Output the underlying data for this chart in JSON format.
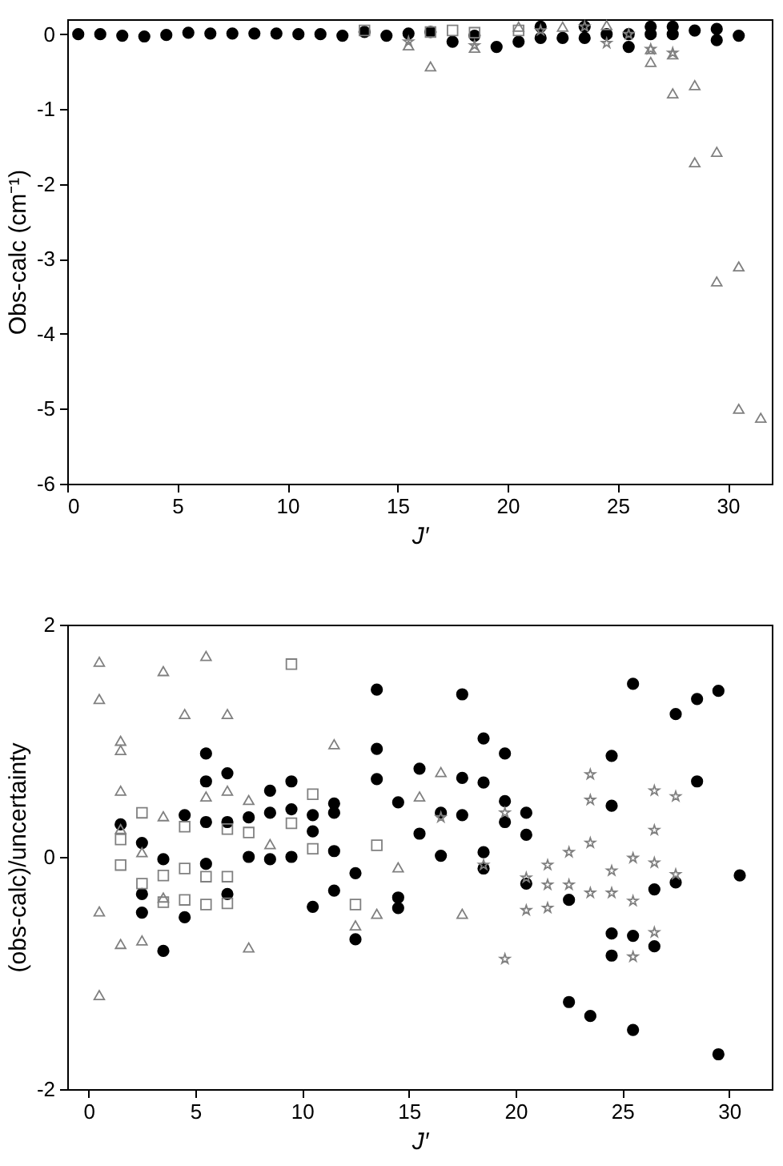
{
  "chart_data": [
    {
      "type": "scatter",
      "xlabel": "J′",
      "ylabel": "Obs-calc (cm⁻¹)",
      "xlim": [
        0,
        32
      ],
      "ylim": [
        -6,
        0.2
      ],
      "xticks": [
        0,
        5,
        10,
        15,
        20,
        25,
        30
      ],
      "yticks": [
        -6,
        -5,
        -4,
        -3,
        -2,
        -1,
        0
      ],
      "series": [
        {
          "type": "scatter",
          "marker": "circle",
          "color": "#000000",
          "x": [
            0.5,
            1.5,
            2.5,
            3.5,
            4.5,
            5.5,
            6.5,
            7.5,
            8.5,
            9.5,
            10.5,
            11.5,
            12.5,
            13.5,
            14.5,
            15.5,
            16.5,
            17.5,
            18.5,
            19.5,
            20.5,
            21.5,
            22.5,
            23.5,
            24.5,
            25.5,
            26.5,
            27.5,
            28.5,
            29.5,
            30.5,
            21.5,
            23.5,
            25.5,
            26.5,
            27.5,
            29.5
          ],
          "values": [
            0,
            0,
            -0.02,
            -0.03,
            -0.01,
            0.02,
            0.01,
            0.01,
            0.01,
            0.01,
            0,
            0,
            -0.02,
            0.03,
            -0.02,
            0.01,
            0.03,
            -0.1,
            -0.02,
            -0.17,
            -0.1,
            0.1,
            -0.05,
            0.1,
            0,
            -0.17,
            0.1,
            0.1,
            0.05,
            0.07,
            -0.02,
            -0.05,
            -0.05,
            0,
            0,
            0,
            -0.08
          ]
        },
        {
          "type": "scatter",
          "marker": "triangle",
          "color": "#808080",
          "x": [
            15.5,
            16.5,
            18.5,
            20.5,
            22.5,
            24.5,
            26.5,
            26.5,
            27.5,
            27.5,
            28.5,
            28.5,
            29.5,
            29.5,
            30.5,
            30.5,
            31.5
          ],
          "values": [
            -0.15,
            -0.43,
            -0.18,
            0.1,
            0.1,
            0.12,
            -0.37,
            -0.2,
            -0.79,
            -0.27,
            -0.68,
            -1.71,
            -1.57,
            -3.3,
            -3.1,
            -5.0,
            -5.12
          ]
        },
        {
          "type": "scatter",
          "marker": "square",
          "color": "#808080",
          "x": [
            13.5,
            16.5,
            17.5,
            18.5,
            20.5
          ],
          "values": [
            0.05,
            0.03,
            0.05,
            0.02,
            0.05
          ]
        },
        {
          "type": "scatter",
          "marker": "star",
          "color": "#808080",
          "x": [
            15.5,
            18.5,
            21.5,
            23.5,
            24.5,
            25.5,
            26.5,
            27.5
          ],
          "values": [
            -0.1,
            -0.15,
            0.05,
            0.1,
            -0.12,
            0,
            -0.2,
            -0.25
          ]
        }
      ]
    },
    {
      "type": "scatter",
      "xlabel": "J′",
      "ylabel": "(obs-calc)/uncertainty",
      "xlim": [
        -1,
        32
      ],
      "ylim": [
        -2,
        2
      ],
      "xticks": [
        0,
        5,
        10,
        15,
        20,
        25,
        30
      ],
      "yticks": [
        -2,
        0,
        2
      ],
      "series": [
        {
          "type": "scatter",
          "marker": "circle",
          "color": "#000000",
          "x": [
            1.5,
            2.5,
            2.5,
            2.5,
            3.5,
            3.5,
            4.5,
            4.5,
            5.5,
            5.5,
            5.5,
            5.5,
            6.5,
            6.5,
            6.5,
            7.5,
            7.5,
            8.5,
            8.5,
            8.5,
            9.5,
            9.5,
            9.5,
            10.5,
            10.5,
            10.5,
            11.5,
            11.5,
            11.5,
            11.5,
            12.5,
            12.5,
            13.5,
            13.5,
            13.5,
            14.5,
            14.5,
            14.5,
            15.5,
            15.5,
            16.5,
            16.5,
            17.5,
            17.5,
            17.5,
            18.5,
            18.5,
            18.5,
            18.5,
            19.5,
            19.5,
            19.5,
            20.5,
            20.5,
            20.5,
            22.5,
            22.5,
            23.5,
            24.5,
            24.5,
            24.5,
            24.5,
            25.5,
            25.5,
            25.5,
            26.5,
            26.5,
            27.5,
            27.5,
            28.5,
            28.5,
            29.5,
            29.5,
            30.5
          ],
          "values": [
            0.28,
            0.12,
            -0.32,
            -0.48,
            -0.02,
            -0.81,
            0.36,
            -0.52,
            0.89,
            0.65,
            0.3,
            -0.06,
            0.72,
            0.3,
            -0.32,
            0.34,
            0,
            0.57,
            0.38,
            -0.02,
            0.65,
            0.41,
            0,
            0.36,
            0.22,
            -0.43,
            0.46,
            0.38,
            0.05,
            -0.29,
            -0.14,
            -0.71,
            1.44,
            0.93,
            0.67,
            0.47,
            -0.35,
            -0.44,
            0.76,
            0.2,
            0.38,
            0.01,
            1.4,
            0.68,
            0.36,
            1.02,
            0.64,
            0.04,
            -0.1,
            0.89,
            0.48,
            0.3,
            0.38,
            0.19,
            -0.23,
            -0.37,
            -1.25,
            -1.37,
            0.87,
            0.44,
            -0.66,
            -0.85,
            1.49,
            -0.68,
            -1.49,
            -0.28,
            -0.77,
            1.23,
            -0.22,
            1.36,
            0.65,
            1.43,
            -1.7,
            -0.16
          ]
        },
        {
          "type": "scatter",
          "marker": "triangle",
          "color": "#808080",
          "x": [
            0.5,
            0.5,
            0.5,
            0.5,
            1.5,
            1.5,
            1.5,
            1.5,
            1.5,
            2.5,
            2.5,
            3.5,
            3.5,
            3.5,
            4.5,
            5.5,
            5.5,
            6.5,
            6.5,
            7.5,
            7.5,
            8.5,
            11.5,
            12.5,
            13.5,
            14.5,
            15.5,
            16.5,
            17.5
          ],
          "values": [
            1.68,
            1.36,
            -0.47,
            -1.19,
            1.0,
            0.92,
            0.57,
            0.24,
            -0.75,
            0.04,
            -0.72,
            1.6,
            0.35,
            -0.35,
            1.23,
            1.73,
            0.52,
            1.23,
            0.57,
            0.49,
            -0.78,
            0.11,
            0.97,
            -0.59,
            -0.49,
            -0.09,
            0.52,
            0.73,
            -0.49
          ]
        },
        {
          "type": "scatter",
          "marker": "square",
          "color": "#808080",
          "x": [
            1.5,
            1.5,
            2.5,
            2.5,
            3.5,
            3.5,
            4.5,
            4.5,
            4.5,
            5.5,
            5.5,
            6.5,
            6.5,
            6.5,
            7.5,
            9.5,
            9.5,
            10.5,
            10.5,
            12.5,
            13.5
          ],
          "values": [
            0.15,
            -0.07,
            0.38,
            -0.23,
            -0.16,
            -0.39,
            0.26,
            -0.1,
            -0.37,
            -0.17,
            -0.41,
            0.24,
            -0.17,
            -0.4,
            0.21,
            1.66,
            0.29,
            0.54,
            0.07,
            -0.41,
            0.1
          ]
        },
        {
          "type": "scatter",
          "marker": "star",
          "color": "#808080",
          "x": [
            16.5,
            18.5,
            19.5,
            19.5,
            20.5,
            20.5,
            21.5,
            21.5,
            21.5,
            22.5,
            22.5,
            23.5,
            23.5,
            23.5,
            23.5,
            24.5,
            24.5,
            25.5,
            25.5,
            25.5,
            26.5,
            26.5,
            26.5,
            26.5,
            27.5,
            27.5
          ],
          "values": [
            0.34,
            -0.07,
            0.38,
            -0.88,
            -0.18,
            -0.46,
            -0.07,
            -0.24,
            -0.44,
            0.04,
            -0.24,
            0.71,
            0.49,
            0.12,
            -0.31,
            -0.12,
            -0.31,
            -0.01,
            -0.38,
            -0.86,
            0.57,
            0.23,
            -0.05,
            -0.65,
            0.52,
            -0.15
          ]
        }
      ]
    }
  ]
}
